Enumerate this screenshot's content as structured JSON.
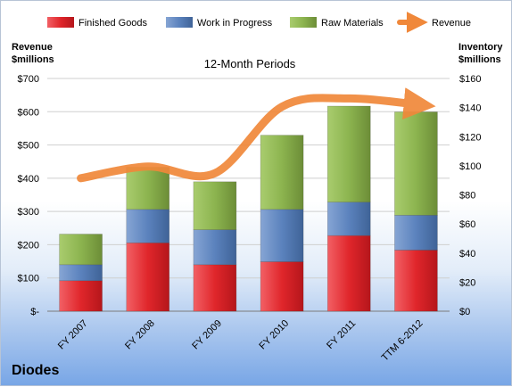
{
  "chart_data": {
    "type": "bar",
    "title": "12-Month Periods",
    "company": "Diodes",
    "categories": [
      "FY 2007",
      "FY 2008",
      "FY 2009",
      "FY 2010",
      "FY 2011",
      "TTM 6-2012"
    ],
    "left_axis_label_lines": [
      "Revenue",
      "$millions"
    ],
    "right_axis_label_lines": [
      "Inventory",
      "$millions"
    ],
    "ylim_left": [
      0,
      700
    ],
    "ylim_right": [
      0,
      160
    ],
    "left_ticks": [
      0,
      100,
      200,
      300,
      400,
      500,
      600,
      700
    ],
    "left_tick_labels": [
      "$-",
      "$100",
      "$200",
      "$300",
      "$400",
      "$500",
      "$600",
      "$700"
    ],
    "right_ticks": [
      0,
      20,
      40,
      60,
      80,
      100,
      120,
      140,
      160
    ],
    "right_tick_labels": [
      "$0",
      "$20",
      "$40",
      "$60",
      "$80",
      "$100",
      "$120",
      "$140",
      "$160"
    ],
    "legend_position": "top",
    "series": [
      {
        "name": "Finished Goods",
        "axis": "right",
        "kind": "stacked-bar",
        "color": "#e0262b",
        "values": [
          21,
          47,
          32,
          34,
          52,
          42
        ]
      },
      {
        "name": "Work in Progress",
        "axis": "right",
        "kind": "stacked-bar",
        "color": "#5b82bd",
        "values": [
          11,
          23,
          24,
          36,
          23,
          24
        ]
      },
      {
        "name": "Raw Materials",
        "axis": "right",
        "kind": "stacked-bar",
        "color": "#8cb44f",
        "values": [
          21,
          29,
          33,
          51,
          66,
          71
        ]
      },
      {
        "name": "Revenue",
        "axis": "left",
        "kind": "line",
        "color": "#f0883a",
        "values": [
          400,
          435,
          415,
          615,
          640,
          620
        ]
      }
    ]
  }
}
